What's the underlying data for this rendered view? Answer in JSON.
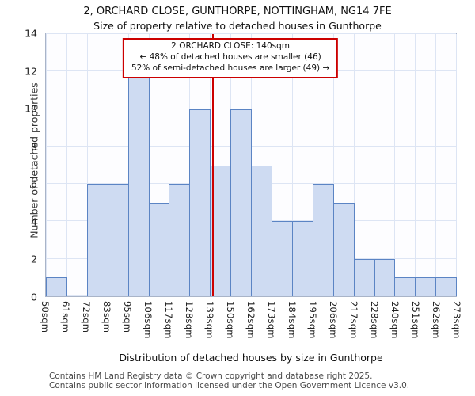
{
  "title": "2, ORCHARD CLOSE, GUNTHORPE, NOTTINGHAM, NG14 7FE",
  "subtitle": "Size of property relative to detached houses in Gunthorpe",
  "annotation": {
    "line1": "2 ORCHARD CLOSE: 140sqm",
    "line2": "← 48% of detached houses are smaller (46)",
    "line3": "52% of semi-detached houses are larger (49) →"
  },
  "footer": {
    "line1": "Contains HM Land Registry data © Crown copyright and database right 2025.",
    "line2": "Contains public sector information licensed under the Open Government Licence v3.0."
  },
  "chart_data": {
    "type": "bar",
    "title": "2, ORCHARD CLOSE, GUNTHORPE, NOTTINGHAM, NG14 7FE — Size of property relative to detached houses in Gunthorpe",
    "xlabel": "Distribution of detached houses by size in Gunthorpe",
    "ylabel": "Number of detached properties",
    "categories": [
      "50sqm",
      "61sqm",
      "72sqm",
      "83sqm",
      "95sqm",
      "106sqm",
      "117sqm",
      "128sqm",
      "139sqm",
      "150sqm",
      "162sqm",
      "173sqm",
      "184sqm",
      "195sqm",
      "206sqm",
      "217sqm",
      "228sqm",
      "240sqm",
      "251sqm",
      "262sqm",
      "273sqm"
    ],
    "values": [
      1,
      0,
      6,
      6,
      12,
      5,
      6,
      10,
      7,
      10,
      7,
      4,
      4,
      6,
      5,
      2,
      2,
      1,
      1,
      1
    ],
    "ylim": [
      0,
      14
    ],
    "yticks": [
      0,
      2,
      4,
      6,
      8,
      10,
      12,
      14
    ],
    "grid": "on",
    "legend": "none",
    "marker": {
      "label": "140sqm",
      "position_fraction": 0.4045
    },
    "colors": {
      "bar_fill": "#cedbf2",
      "bar_border": "#5b84c4",
      "marker_line": "#cc0000",
      "grid": "#dde5f4"
    }
  }
}
